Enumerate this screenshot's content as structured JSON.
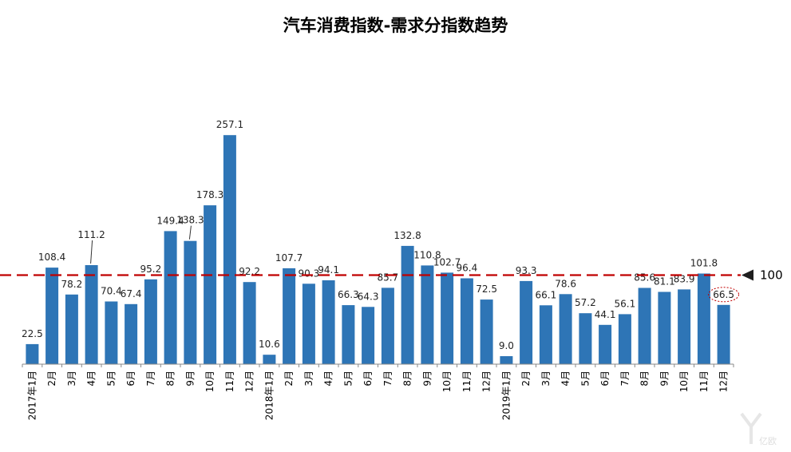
{
  "chart_data": {
    "type": "bar",
    "title": "汽车消费指数-需求分指数趋势",
    "xlabel": "",
    "ylabel": "",
    "categories": [
      "2017年1月",
      "2月",
      "3月",
      "4月",
      "5月",
      "6月",
      "7月",
      "8月",
      "9月",
      "10月",
      "11月",
      "12月",
      "2018年1月",
      "2月",
      "3月",
      "4月",
      "5月",
      "6月",
      "7月",
      "8月",
      "9月",
      "10月",
      "11月",
      "12月",
      "2019年1月",
      "2月",
      "3月",
      "4月",
      "5月",
      "6月",
      "7月",
      "8月",
      "9月",
      "10月",
      "11月",
      "12月"
    ],
    "series": [
      {
        "values": [
          22.5,
          108.4,
          78.2,
          111.2,
          70.4,
          67.4,
          95.2,
          149.4,
          138.3,
          178.3,
          257.1,
          92.2,
          10.6,
          107.7,
          90.3,
          94.1,
          66.3,
          64.3,
          85.7,
          132.8,
          110.8,
          102.7,
          96.4,
          72.5,
          9.0,
          93.3,
          66.1,
          78.6,
          57.2,
          44.1,
          56.1,
          85.6,
          81.1,
          83.9,
          101.8,
          66.5
        ]
      }
    ],
    "value_labels": [
      "22.5",
      "108.4",
      "78.2",
      "111.2",
      "70.4",
      "67.4",
      "95.2",
      "149.4",
      "138.3",
      "178.3",
      "257.1",
      "92.2",
      "10.6",
      "107.7",
      "90.3",
      "94.1",
      "66.3",
      "64.3",
      "85.7",
      "132.8",
      "110.8",
      "102.7",
      "96.4",
      "72.5",
      "9.0",
      "93.3",
      "66.1",
      "78.6",
      "57.2",
      "44.1",
      "56.1",
      "85.6",
      "81.1",
      "83.9",
      "101.8",
      "66.5"
    ],
    "reference_line": {
      "value": 100,
      "label": "100",
      "color": "#c00000",
      "style": "dashed"
    },
    "ylim": [
      0,
      260
    ],
    "grid": false,
    "legend": "none",
    "bar_color": "#2e75b6",
    "highlight_last_label": true
  },
  "watermark": {
    "icon": "yiou-logo-icon",
    "text": "亿欧"
  }
}
